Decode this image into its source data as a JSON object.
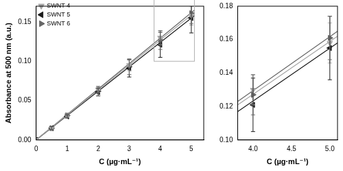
{
  "chart_data": [
    {
      "type": "scatter",
      "x_label": "C (µg·mL⁻¹)",
      "y_label": "Absorbance at 500 nm (a.u.)",
      "x": [
        0,
        0.5,
        1,
        2,
        3,
        4,
        5
      ],
      "fit_x": [
        0,
        5.1
      ],
      "series": [
        {
          "name": "SWNT 4",
          "color": "#a6a6a6",
          "marker": "triangle_down",
          "values": [
            0,
            0.015,
            0.031,
            0.064,
            0.095,
            0.13,
            0.158
          ],
          "errors": [
            0,
            0.002,
            0.002,
            0.004,
            0.007,
            0.009,
            0.012
          ],
          "fit": [
            0,
            0.162
          ]
        },
        {
          "name": "SWNT 5",
          "color": "#1a1a1a",
          "marker": "triangle_left",
          "values": [
            0,
            0.015,
            0.03,
            0.061,
            0.091,
            0.121,
            0.155
          ],
          "errors": [
            0,
            0.002,
            0.002,
            0.005,
            0.011,
            0.016,
            0.019
          ],
          "fit": [
            0,
            0.158
          ]
        },
        {
          "name": "SWNT 6",
          "color": "#666666",
          "marker": "triangle_right",
          "values": [
            0,
            0.015,
            0.031,
            0.062,
            0.093,
            0.127,
            0.161
          ],
          "errors": [
            0,
            0.002,
            0.003,
            0.006,
            0.01,
            0.012,
            0.013
          ],
          "fit": [
            0,
            0.165
          ]
        }
      ],
      "xlim": [
        0,
        5.4
      ],
      "xticks": [
        0,
        1,
        2,
        3,
        4,
        5
      ],
      "ylim": [
        0,
        0.17
      ],
      "yticks": [
        {
          "value": 0,
          "label": "0.00"
        },
        {
          "value": 0.05,
          "label": "0.05"
        },
        {
          "value": 0.1,
          "label": "0.10"
        },
        {
          "value": 0.15,
          "label": "0.15"
        }
      ],
      "grid": false,
      "legend": "upper left"
    },
    {
      "type": "scatter",
      "x_label": "C (µg·mL⁻¹)",
      "x": [
        4,
        5
      ],
      "fit_x": [
        3.8,
        5.1
      ],
      "series": [
        {
          "name": "SWNT 4",
          "color": "#a6a6a6",
          "marker": "triangle_down",
          "values": [
            0.13,
            0.158
          ],
          "errors": [
            0.009,
            0.012
          ],
          "fit": [
            0.121,
            0.162
          ]
        },
        {
          "name": "SWNT 5",
          "color": "#1a1a1a",
          "marker": "triangle_left",
          "values": [
            0.121,
            0.155
          ],
          "errors": [
            0.016,
            0.019
          ],
          "fit": [
            0.117,
            0.158
          ]
        },
        {
          "name": "SWNT 6",
          "color": "#666666",
          "marker": "triangle_right",
          "values": [
            0.127,
            0.161
          ],
          "errors": [
            0.012,
            0.013
          ],
          "fit": [
            0.123,
            0.165
          ]
        }
      ],
      "xlim": [
        3.8,
        5.1
      ],
      "xticks": [
        {
          "value": 4,
          "label": "4.0"
        },
        {
          "value": 4.5,
          "label": "4.5"
        },
        {
          "value": 5,
          "label": "5.0"
        }
      ],
      "ylim": [
        0.1,
        0.18
      ],
      "yticks": [
        {
          "value": 0.1,
          "label": "0.10"
        },
        {
          "value": 0.12,
          "label": "0.12"
        },
        {
          "value": 0.14,
          "label": "0.14"
        },
        {
          "value": 0.16,
          "label": "0.16"
        },
        {
          "value": 0.18,
          "label": "0.18"
        }
      ],
      "grid": false
    }
  ]
}
